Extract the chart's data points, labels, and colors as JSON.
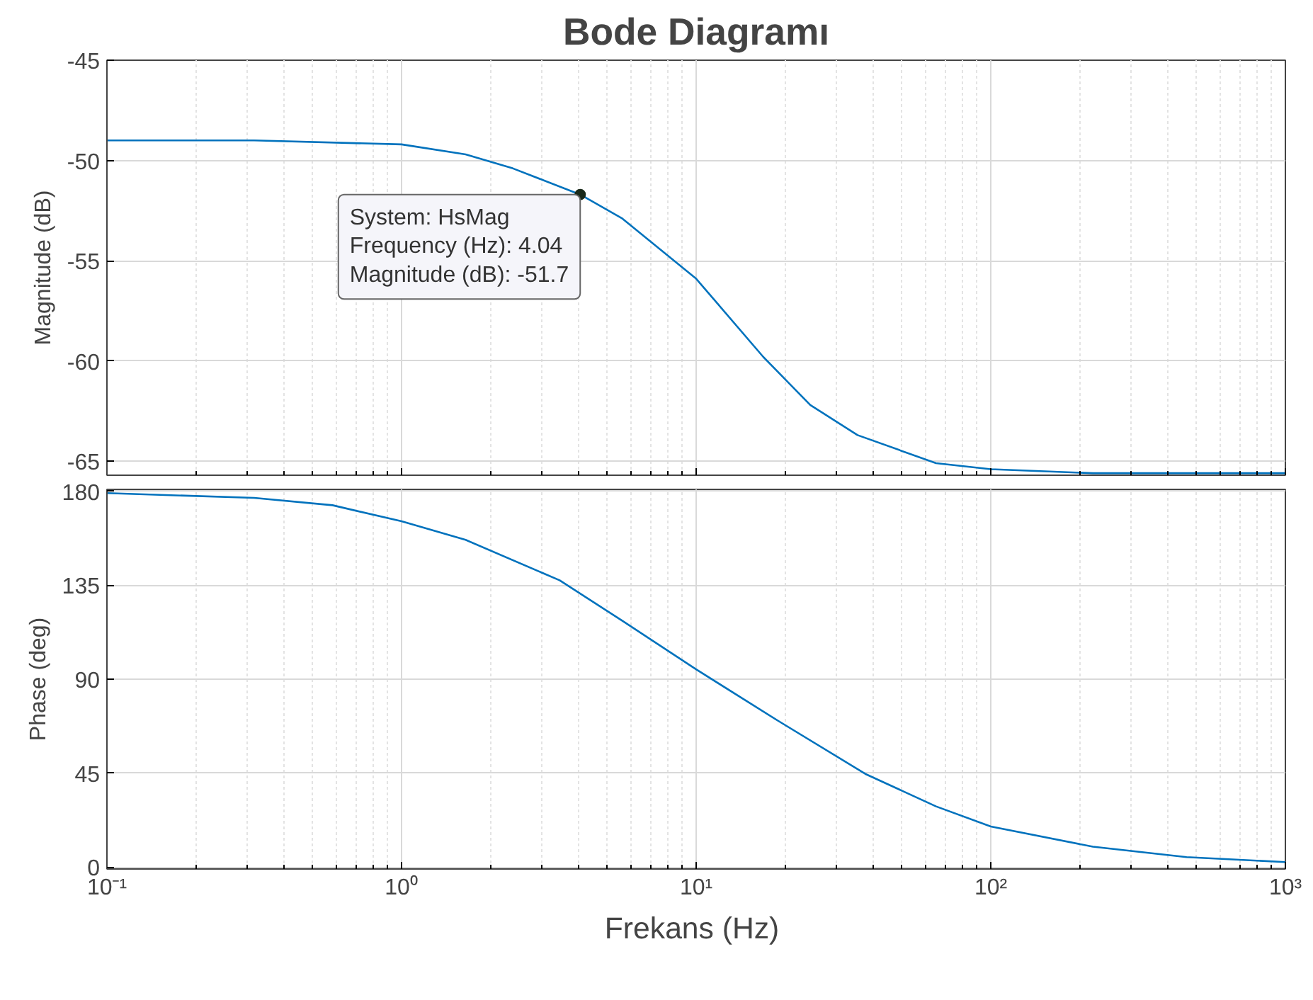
{
  "chart_data": [
    {
      "type": "line",
      "title": "Bode Diagramı",
      "ylabel": "Magnitude (dB)",
      "log": "x",
      "grid": true,
      "tick_labels": "y",
      "xlim": [
        0.1,
        1000
      ],
      "xticks": [
        0.1,
        1,
        10,
        100,
        1000
      ],
      "ylim": [
        -65.7,
        -45
      ],
      "yticks": [
        -65,
        -60,
        -55,
        -50,
        -45
      ],
      "series": [
        {
          "color": "#0072bd",
          "x": [
            0.1,
            0.316,
            1,
            1.65,
            2.39,
            4.04,
            5.62,
            10,
            16.9,
            24.4,
            35.3,
            65.2,
            100,
            222,
            1000
          ],
          "values": [
            -49.0,
            -49.0,
            -49.2,
            -49.7,
            -50.4,
            -51.7,
            -52.9,
            -55.9,
            -59.8,
            -62.2,
            -63.7,
            -65.1,
            -65.4,
            -65.6,
            -65.6
          ]
        }
      ],
      "annotations": [
        {
          "text": "System: HsMag\nFrequency (Hz): 4.04\nMagnitude (dB): -51.7",
          "x": 4.04,
          "y": -51.7
        }
      ]
    },
    {
      "type": "line",
      "xlabel": "Frekans  (Hz)",
      "ylabel": "Phase (deg)",
      "log": "x",
      "grid": true,
      "xlim": [
        0.1,
        1000
      ],
      "xticks": [
        {
          "value": 0.1,
          "label": "10⁻¹"
        },
        {
          "value": 1,
          "label": "10⁰"
        },
        {
          "value": 10,
          "label": "10¹"
        },
        {
          "value": 100,
          "label": "10²"
        },
        {
          "value": 1000,
          "label": "10³"
        }
      ],
      "ylim": [
        -1,
        181
      ],
      "yticks": [
        0,
        45,
        90,
        135,
        180
      ],
      "series": [
        {
          "color": "#0072bd",
          "x": [
            0.1,
            0.316,
            0.583,
            1,
            1.65,
            3.44,
            5.62,
            10,
            19.1,
            37.5,
            65.2,
            100,
            222,
            462,
            1000
          ],
          "values": [
            179.2,
            176.9,
            173.4,
            165.7,
            156.8,
            137.4,
            118,
            94.7,
            69.8,
            44.6,
            29,
            19.4,
            9.7,
            4.7,
            2.3
          ]
        }
      ]
    }
  ]
}
